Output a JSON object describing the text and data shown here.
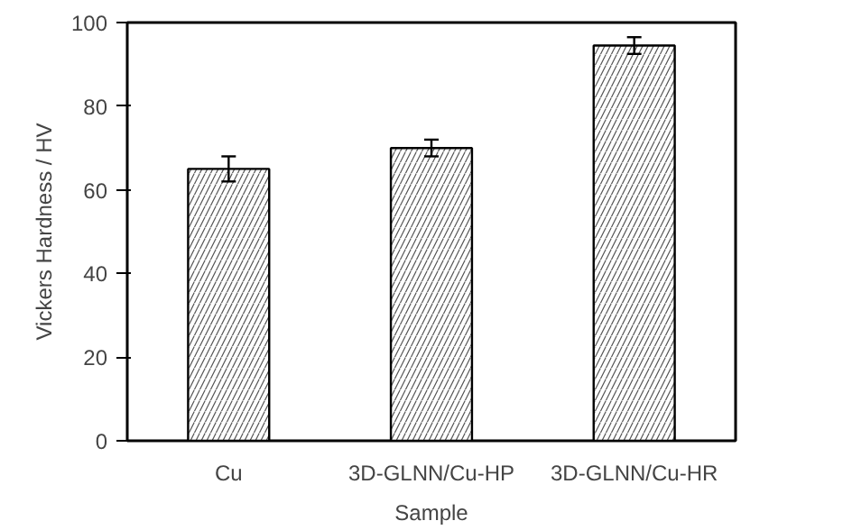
{
  "chart_data": {
    "type": "bar",
    "xlabel": "Sample",
    "ylabel": "Vickers Hardness / HV",
    "categories": [
      "Cu",
      "3D-GLNN/Cu-HP",
      "3D-GLNN/Cu-HR"
    ],
    "values": [
      65,
      70,
      94.5
    ],
    "errors": [
      3,
      2,
      2
    ],
    "color": "#ffffff",
    "ylim": [
      0,
      100
    ],
    "yticks": [
      0,
      20,
      40,
      60,
      80,
      100
    ],
    "grid": false
  }
}
